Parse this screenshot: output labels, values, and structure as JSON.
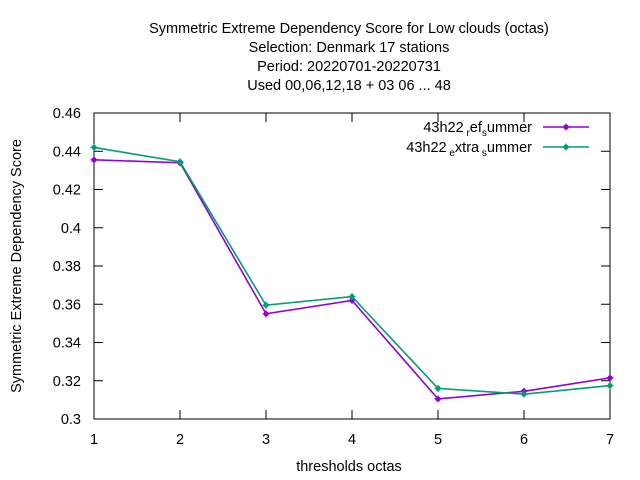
{
  "chart_data": {
    "type": "line",
    "title_lines": [
      "Symmetric Extreme Dependency Score  for Low clouds (octas)",
      "Selection: Denmark     17 stations",
      "Period: 20220701-20220731",
      "Used  00,06,12,18  + 03 06 ... 48"
    ],
    "xlabel": "thresholds octas",
    "ylabel": "Symmetric Extreme Dependency Score",
    "x": [
      1,
      2,
      3,
      4,
      5,
      6,
      7
    ],
    "xlim": [
      1,
      7
    ],
    "ylim": [
      0.3,
      0.46
    ],
    "yticks": [
      0.3,
      0.32,
      0.34,
      0.36,
      0.38,
      0.4,
      0.42,
      0.44,
      0.46
    ],
    "ytick_labels": [
      "0.3",
      "0.32",
      "0.34",
      "0.36",
      "0.38",
      "0.4",
      "0.42",
      "0.44",
      "0.46"
    ],
    "xtick_labels": [
      "1",
      "2",
      "3",
      "4",
      "5",
      "6",
      "7"
    ],
    "grid": false,
    "legend_position": "top-right",
    "series": [
      {
        "name_parts": [
          {
            "t": "43h22",
            "sub": false
          },
          {
            "t": " r",
            "sub": true
          },
          {
            "t": "ef",
            "sub": false
          },
          {
            "t": "s",
            "sub": true
          },
          {
            "t": "ummer",
            "sub": false
          }
        ],
        "color": "#9400d3",
        "values": [
          0.4355,
          0.434,
          0.355,
          0.362,
          0.3105,
          0.3145,
          0.3215
        ]
      },
      {
        "name_parts": [
          {
            "t": "43h22",
            "sub": false
          },
          {
            "t": " e",
            "sub": true
          },
          {
            "t": "xtra",
            "sub": false
          },
          {
            "t": " s",
            "sub": true
          },
          {
            "t": "ummer",
            "sub": false
          }
        ],
        "color": "#009e73",
        "values": [
          0.442,
          0.4345,
          0.3595,
          0.364,
          0.316,
          0.313,
          0.3175
        ]
      }
    ]
  }
}
